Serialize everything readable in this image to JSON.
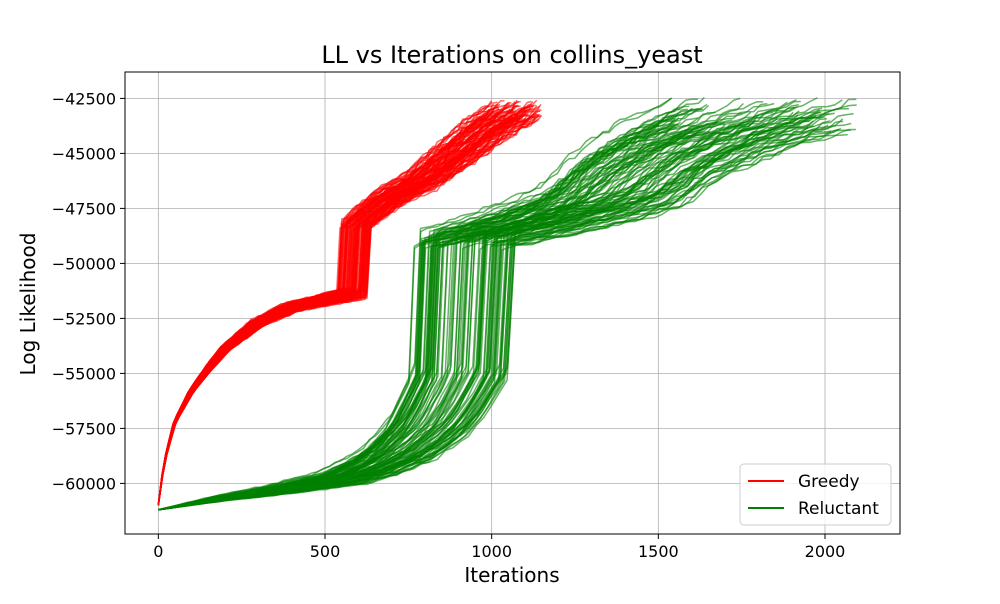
{
  "chart_data": {
    "type": "line",
    "title": "LL vs Iterations on collins_yeast",
    "xlabel": "Iterations",
    "ylabel": "Log Likelihood",
    "xlim": [
      -100,
      2225
    ],
    "ylim": [
      -62300,
      -41300
    ],
    "x_ticks": [
      0,
      500,
      1000,
      1500,
      2000
    ],
    "y_ticks": [
      -60000,
      -57500,
      -55000,
      -52500,
      -50000,
      -47500,
      -45000,
      -42500
    ],
    "grid": true,
    "legend": {
      "position": "bottom-right",
      "entries": [
        {
          "label": "Greedy",
          "color": "#ff0000"
        },
        {
          "label": "Reluctant",
          "color": "#008000"
        }
      ]
    },
    "series": [
      {
        "name": "Greedy",
        "color": "#ff0000",
        "run_count": 100,
        "median_run": {
          "x": [
            0,
            10,
            25,
            50,
            100,
            150,
            200,
            300,
            400,
            500,
            590,
            600,
            700,
            800,
            900,
            1000,
            1080
          ],
          "y": [
            -61000,
            -59800,
            -58600,
            -57200,
            -55800,
            -54800,
            -53900,
            -52700,
            -52000,
            -51700,
            -51400,
            -48200,
            -47000,
            -46200,
            -45000,
            -43800,
            -43100
          ]
        },
        "final_x_range": [
          980,
          1150
        ],
        "final_y_range": [
          -44500,
          -42300
        ]
      },
      {
        "name": "Reluctant",
        "color": "#008000",
        "run_count": 100,
        "median_run": {
          "x": [
            0,
            200,
            400,
            600,
            700,
            800,
            900,
            950,
            1000,
            1020,
            1200,
            1400,
            1500,
            1600,
            1700,
            1800,
            1900,
            2000
          ],
          "y": [
            -61200,
            -60700,
            -60300,
            -59800,
            -59300,
            -58600,
            -57400,
            -56300,
            -55000,
            -48900,
            -48300,
            -47500,
            -47000,
            -45800,
            -45000,
            -44300,
            -43800,
            -43300
          ]
        },
        "final_x_range": [
          1500,
          2120
        ],
        "final_y_range": [
          -45000,
          -42300
        ]
      }
    ]
  }
}
